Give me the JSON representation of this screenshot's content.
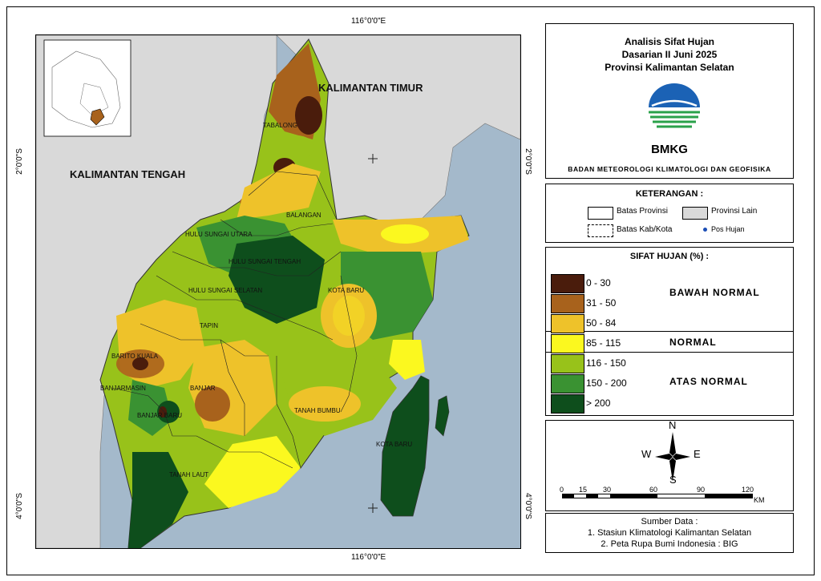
{
  "coords": {
    "top": "116°0'0\"E",
    "bottom": "116°0'0\"E",
    "left_top": "2°0'0\"S",
    "left_bottom": "4°0'0\"S",
    "right_top": "2°0'0\"S",
    "right_bottom": "4°0'0\"S"
  },
  "regions": {
    "kaltim": "KALIMANTAN TIMUR",
    "kalteng": "KALIMANTAN TENGAH"
  },
  "districts": [
    "TABALONG",
    "BALANGAN",
    "HULU SUNGAI UTARA",
    "HULU SUNGAI TENGAH",
    "HULU SUNGAI SELATAN",
    "TAPIN",
    "KOTA BARU",
    "BARITO KUALA",
    "BANJARMASIN",
    "BANJAR",
    "BANJAR BARU",
    "TANAH BUMBU",
    "KOTA BARU",
    "TANAH LAUT"
  ],
  "title": {
    "line1": "Analisis Sifat Hujan",
    "line2": "Dasarian II Juni 2025",
    "line3": "Provinsi Kalimantan Selatan",
    "logo_text": "BMKG",
    "org": "BADAN METEOROLOGI KLIMATOLOGI DAN GEOFISIKA"
  },
  "legend": {
    "heading": "KETERANGAN :",
    "batas_provinsi": "Batas Provinsi",
    "provinsi_lain": "Provinsi Lain",
    "batas_kab": "Batas Kab/Kota",
    "pos_hujan": "Pos Hujan"
  },
  "sifat": {
    "heading": "SIFAT HUJAN (%) :",
    "classes": [
      {
        "label": "0 - 30",
        "color": "#4a1c0c"
      },
      {
        "label": "31 - 50",
        "color": "#a8621c"
      },
      {
        "label": "50 - 84",
        "color": "#eec22a"
      },
      {
        "label": "85 - 115",
        "color": "#fbf81f"
      },
      {
        "label": "116 - 150",
        "color": "#98c21a"
      },
      {
        "label": "150 - 200",
        "color": "#3a9232"
      },
      {
        "label": "> 200",
        "color": "#0e4e1c"
      }
    ],
    "categories": {
      "bawah": "BAWAH NORMAL",
      "normal": "NORMAL",
      "atas": "ATAS NORMAL"
    }
  },
  "north": {
    "n": "N",
    "s": "S",
    "e": "E",
    "w": "W"
  },
  "scale": {
    "ticks": [
      "0",
      "15",
      "30",
      "60",
      "90",
      "120"
    ],
    "unit": "KM"
  },
  "source": {
    "heading": "Sumber Data :",
    "line1": "1. Stasiun Klimatologi Kalimantan Selatan",
    "line2": "2. Peta Rupa Bumi Indonesia : BIG"
  }
}
